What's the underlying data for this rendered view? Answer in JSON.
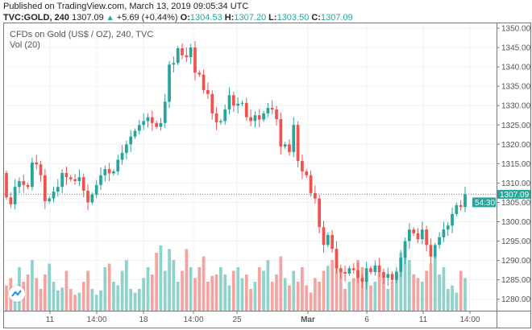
{
  "header": {
    "published": "Published on TradingView.com, March 13, 2019 09:05:34 UTC",
    "symbol": "TVC:GOLD, 240",
    "last": "1307.09",
    "change": "+5.69 (+0.44%)",
    "o_label": "O:",
    "o": "1304.53",
    "h_label": "H:",
    "h": "1307.20",
    "l_label": "L:",
    "l": "1303.50",
    "c_label": "C:",
    "c": "1307.09"
  },
  "legend": {
    "title": "CFDs on Gold (US$ / OZ), 240, TVC",
    "volume": "Vol (20)"
  },
  "price_tag": {
    "value": "1307.09",
    "countdown": "54:30"
  },
  "colors": {
    "up": "#26a69a",
    "down": "#ef5350",
    "up_vol": "#8ed2cb",
    "down_vol": "#f5a3a1",
    "grid": "#eef1f5"
  },
  "chart_data": {
    "type": "candlestick",
    "title": "CFDs on Gold (US$ / OZ), 240, TVC",
    "ylim": [
      1277,
      1352
    ],
    "yticks": [
      "1280.00",
      "1285.00",
      "1290.00",
      "1295.00",
      "1300.00",
      "1305.00",
      "1310.00",
      "1315.00",
      "1320.00",
      "1325.00",
      "1330.00",
      "1335.00",
      "1340.00",
      "1345.00",
      "1350.00"
    ],
    "xticks": [
      {
        "label": "11",
        "bold": false
      },
      {
        "label": "14:00",
        "bold": false
      },
      {
        "label": "18",
        "bold": false
      },
      {
        "label": "14:00",
        "bold": false
      },
      {
        "label": "25",
        "bold": false
      },
      {
        "label": "Mar",
        "bold": true
      },
      {
        "label": "6",
        "bold": false
      },
      {
        "label": "11",
        "bold": false
      },
      {
        "label": "14:00",
        "bold": false
      }
    ],
    "first_open": 1312.6,
    "closes": [
      1306.3,
      1304.5,
      1309,
      1310.5,
      1309.5,
      1309,
      1315.3,
      1314.8,
      1312,
      1305.3,
      1306,
      1307.8,
      1309,
      1312.6,
      1311.5,
      1311,
      1310.5,
      1311.5,
      1308,
      1305,
      1307,
      1309.5,
      1312,
      1313.6,
      1312.5,
      1313,
      1316,
      1317.8,
      1320,
      1322,
      1323.5,
      1325,
      1326,
      1327,
      1325.5,
      1324.5,
      1325.5,
      1331,
      1340.6,
      1341,
      1344.8,
      1343,
      1342.5,
      1345,
      1338.5,
      1338,
      1334,
      1333,
      1328,
      1325.7,
      1326,
      1329,
      1332.7,
      1330,
      1330.5,
      1330.7,
      1327,
      1326,
      1327.5,
      1326.4,
      1328,
      1329.4,
      1329,
      1326.5,
      1319.4,
      1320,
      1318,
      1325,
      1315.7,
      1313,
      1312,
      1307.4,
      1306,
      1298.6,
      1294,
      1296.6,
      1293,
      1288,
      1287,
      1286.6,
      1288,
      1287.5,
      1285.5,
      1284.5,
      1288,
      1287,
      1288.7,
      1287,
      1285.5,
      1286.5,
      1285,
      1287,
      1290.7,
      1295,
      1298,
      1297,
      1295.5,
      1298,
      1294,
      1291,
      1294,
      1296,
      1298,
      1299,
      1302,
      1304.3,
      1303.8,
      1307.09
    ],
    "volumes": [
      35,
      45,
      25,
      60,
      40,
      50,
      70,
      45,
      30,
      50,
      65,
      40,
      28,
      32,
      55,
      30,
      22,
      25,
      40,
      55,
      30,
      22,
      28,
      60,
      65,
      40,
      35,
      55,
      70,
      30,
      25,
      30,
      45,
      60,
      50,
      80,
      90,
      55,
      85,
      70,
      40,
      55,
      85,
      60,
      45,
      60,
      75,
      40,
      48,
      50,
      60,
      50,
      35,
      55,
      60,
      45,
      50,
      30,
      40,
      60,
      55,
      70,
      40,
      50,
      75,
      45,
      35,
      55,
      40,
      60,
      35,
      25,
      45,
      40,
      55,
      62,
      70,
      85,
      55,
      30,
      40,
      45,
      70,
      60,
      45,
      35,
      40,
      55,
      45,
      30,
      40,
      55,
      80,
      95,
      70,
      50,
      45,
      40,
      55,
      65,
      75,
      50,
      60,
      30,
      35,
      25,
      55,
      45
    ]
  }
}
